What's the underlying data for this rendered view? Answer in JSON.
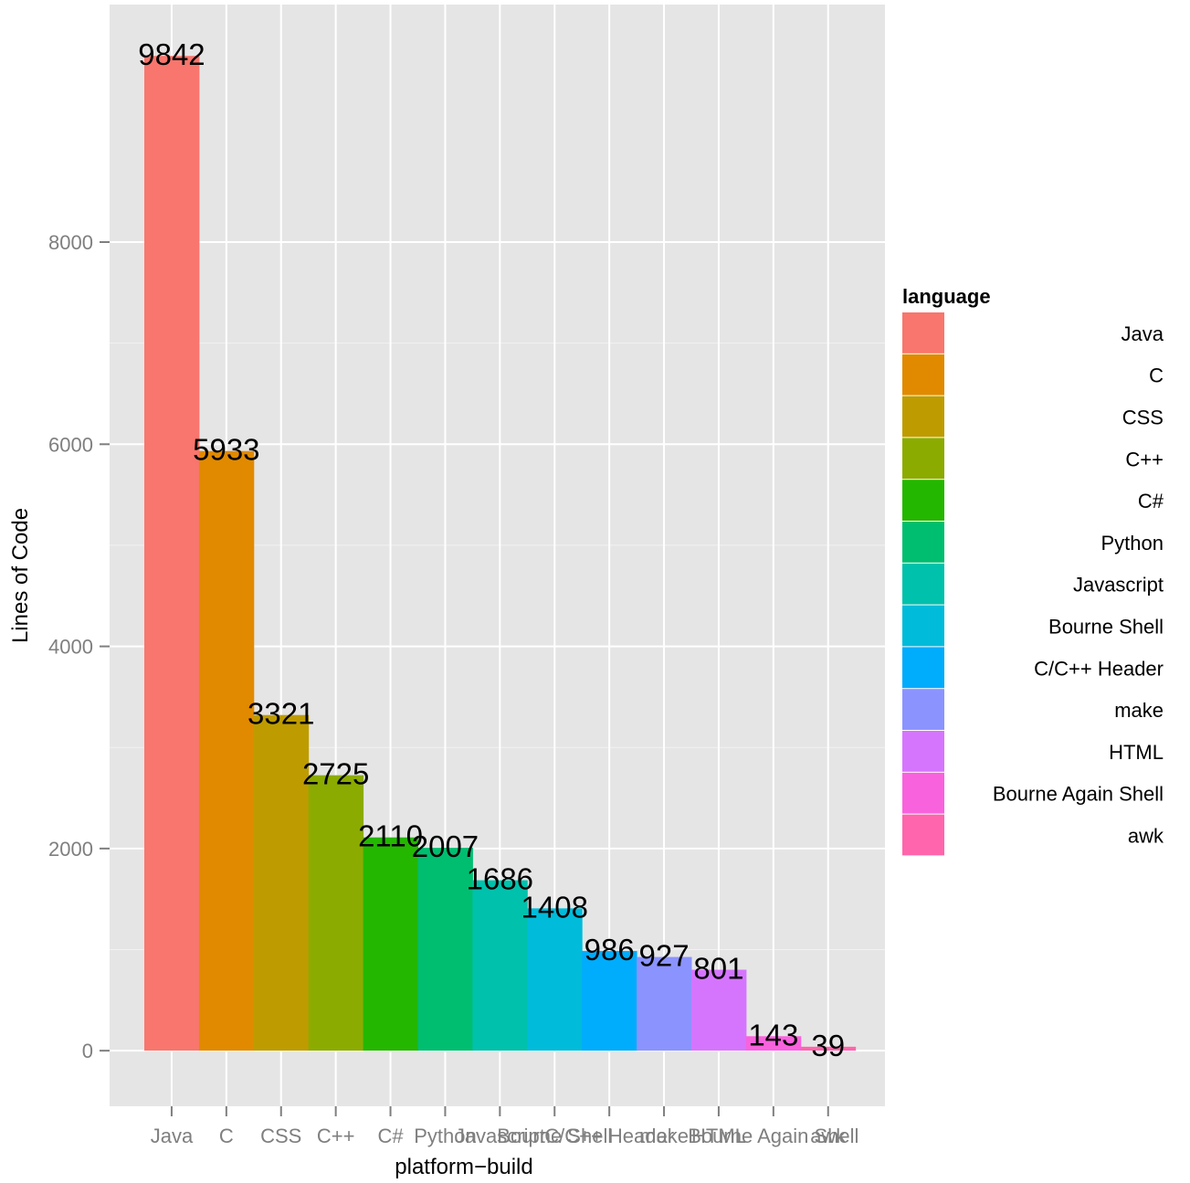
{
  "chart_data": {
    "type": "bar",
    "title": "",
    "xlabel": "platform−build",
    "ylabel": "Lines of Code",
    "categories": [
      "Java",
      "C",
      "CSS",
      "C++",
      "C#",
      "Python",
      "Javascript",
      "Bourne Shell",
      "C/C++ Header",
      "make",
      "HTML",
      "Bourne Again Shell",
      "awk"
    ],
    "values": [
      9842,
      5933,
      3321,
      2725,
      2110,
      2007,
      1686,
      1408,
      986,
      927,
      801,
      143,
      39
    ],
    "data_labels": [
      "9842",
      "5933",
      "3321",
      "2725",
      "2110",
      "2007",
      "1686",
      "1408",
      "986",
      "927",
      "801",
      "143",
      "39"
    ],
    "colors": [
      "#F8766D",
      "#E18A00",
      "#BE9C00",
      "#8CAB00",
      "#24B700",
      "#00BE70",
      "#00C1AB",
      "#00BBDA",
      "#00ACFC",
      "#8B93FF",
      "#D575FE",
      "#F962DD",
      "#FF65AC"
    ],
    "ylim": [
      -550,
      10350
    ],
    "yticks": [
      0,
      2000,
      4000,
      6000,
      8000
    ],
    "ytick_labels": [
      "0",
      "2000",
      "4000",
      "6000",
      "8000"
    ],
    "grid": true,
    "legend": {
      "title": "language",
      "position": "right",
      "entries": [
        "Java",
        "C",
        "CSS",
        "C++",
        "C#",
        "Python",
        "Javascript",
        "Bourne Shell",
        "C/C++ Header",
        "make",
        "HTML",
        "Bourne Again Shell",
        "awk"
      ]
    }
  }
}
